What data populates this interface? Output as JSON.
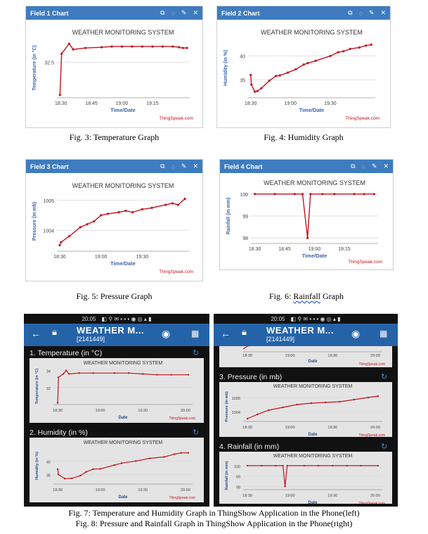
{
  "icons": {
    "panel": [
      "edit-icon",
      "comment-icon",
      "pencil-icon",
      "close-icon"
    ],
    "phone": [
      "back-arrow-icon",
      "lock-icon",
      "eye-icon",
      "grid-menu-icon",
      "refresh-icon"
    ]
  },
  "colors": {
    "header": "#3e7cbf",
    "line": "#c0141e",
    "appbar": "#2563a9",
    "refresh": "#3a8cd8"
  },
  "charts": [
    {
      "id": "c1",
      "header": "Field 1 Chart",
      "title": "WEATHER MONITORING SYSTEM",
      "ylabel": "Temperature (in °C)",
      "xlabel": "Time/Date",
      "credit": "ThingSpeak.com",
      "yticks": [
        32.5
      ],
      "ylim": [
        30.0,
        34.2
      ],
      "xticks": [
        {
          "l": "18:30",
          "v": 0
        },
        {
          "l": "18:45",
          "v": 15
        },
        {
          "l": "19:00",
          "v": 30
        },
        {
          "l": "19:15",
          "v": 45
        }
      ],
      "xlim": [
        -2,
        63
      ],
      "points": [
        [
          -0.5,
          30.2
        ],
        [
          0.3,
          33.1
        ],
        [
          4,
          33.8
        ],
        [
          6,
          33.4
        ],
        [
          12,
          33.5
        ],
        [
          20,
          33.55
        ],
        [
          25,
          33.6
        ],
        [
          30,
          33.6
        ],
        [
          35,
          33.6
        ],
        [
          40,
          33.6
        ],
        [
          45,
          33.6
        ],
        [
          50,
          33.6
        ],
        [
          55,
          33.6
        ],
        [
          58,
          33.55
        ],
        [
          60,
          33.5
        ],
        [
          62,
          33.5
        ]
      ]
    },
    {
      "id": "c2",
      "header": "Field 2 Chart",
      "title": "WEATHER MONITORING SYSTEM",
      "ylabel": "Humidity (in %)",
      "xlabel": "Time/Date",
      "credit": "ThingSpeak.com",
      "yticks": [
        35,
        40
      ],
      "ylim": [
        31.2,
        43.8
      ],
      "xticks": [
        {
          "l": "18:30",
          "v": 0
        },
        {
          "l": "19:00",
          "v": 30
        },
        {
          "l": "19:30",
          "v": 60
        }
      ],
      "xlim": [
        -2,
        94
      ],
      "points": [
        [
          0,
          36
        ],
        [
          0.5,
          34
        ],
        [
          3,
          32.5
        ],
        [
          5,
          32.6
        ],
        [
          8,
          33.2
        ],
        [
          14,
          34.8
        ],
        [
          19,
          35.8
        ],
        [
          22,
          35.9
        ],
        [
          28,
          36.5
        ],
        [
          34,
          37.2
        ],
        [
          40,
          38.2
        ],
        [
          43,
          38.5
        ],
        [
          49,
          39
        ],
        [
          60,
          40
        ],
        [
          66,
          40.8
        ],
        [
          70,
          41
        ],
        [
          75,
          41.5
        ],
        [
          82,
          41.8
        ],
        [
          87,
          42.2
        ],
        [
          91,
          42.4
        ]
      ]
    },
    {
      "id": "c3",
      "header": "Field 3 Chart",
      "title": "WEATHER MONITORING SYSTEM",
      "ylabel": "Pressure (in mb)",
      "xlabel": "Time/Date",
      "credit": "ThingSpeak.com",
      "yticks": [
        1004,
        1005
      ],
      "ylim": [
        1003.3,
        1005.3
      ],
      "xticks": [
        {
          "l": "18:30",
          "v": 0
        },
        {
          "l": "19:00",
          "v": 30
        },
        {
          "l": "19:30",
          "v": 60
        }
      ],
      "xlim": [
        -2,
        94
      ],
      "points": [
        [
          0,
          1003.5
        ],
        [
          1,
          1003.6
        ],
        [
          7,
          1003.8
        ],
        [
          15,
          1004.1
        ],
        [
          20,
          1004.2
        ],
        [
          25,
          1004.3
        ],
        [
          30,
          1004.5
        ],
        [
          35,
          1004.55
        ],
        [
          43,
          1004.6
        ],
        [
          48,
          1004.65
        ],
        [
          53,
          1004.6
        ],
        [
          60,
          1004.7
        ],
        [
          67,
          1004.75
        ],
        [
          77,
          1004.85
        ],
        [
          82,
          1004.9
        ],
        [
          86,
          1004.85
        ],
        [
          91,
          1005.05
        ]
      ]
    },
    {
      "id": "c4",
      "header": "Field 4 Chart",
      "title": "WEATHER MONITORING SYSTEM",
      "ylabel": "Rainfall (in mm)",
      "xlabel": "Time/Date",
      "credit": "ThingSpeak.com",
      "yticks": [
        98,
        99,
        100
      ],
      "ylim": [
        97.75,
        100.25
      ],
      "xticks": [
        {
          "l": "18:30",
          "v": 0
        },
        {
          "l": "18:45",
          "v": 15
        },
        {
          "l": "19:00",
          "v": 30
        },
        {
          "l": "19:15",
          "v": 45
        }
      ],
      "xlim": [
        -2,
        62
      ],
      "points": [
        [
          0,
          100
        ],
        [
          10,
          100
        ],
        [
          20,
          100
        ],
        [
          24,
          100
        ],
        [
          26.5,
          98
        ],
        [
          28,
          100
        ],
        [
          34,
          100
        ],
        [
          40,
          100
        ],
        [
          50,
          100
        ],
        [
          55,
          100
        ],
        [
          60,
          100
        ]
      ]
    }
  ],
  "captions": {
    "fig3": "Fig. 3: Temperature Graph",
    "fig4": "Fig. 4: Humidity Graph",
    "fig5": "Fig. 5: Pressure Graph",
    "fig6a": "Fig. 6: ",
    "fig6b": "Rainfall",
    "fig6c": " Graph",
    "fig7": "Fig. 7: Temperature and Humidity Graph in ThingShow Application in the Phone(left)",
    "fig8": "Fig. 8: Pressure and Rainfall Graph in ThingShow Application in the Phone(right)"
  },
  "phone": {
    "time": "20:05",
    "app_title": "WEATHER M...",
    "app_sub": "[2141449]",
    "left": {
      "sec1": "1. Temperature (in °C)",
      "sec2": "2. Humidity (in %)"
    },
    "right": {
      "sec3": "3. Pressure (in mb)",
      "sec4": "4. Rainfall (in mm)"
    },
    "cards": [
      {
        "id": "p1",
        "title": "WEATHER MONITORING SYSTEM",
        "ylabel": "Temperature (in °C)",
        "xlabel": "Date",
        "credit": "ThingSpeak.com",
        "yticks": [
          32,
          34
        ],
        "ylim": [
          30,
          34.3
        ],
        "xticks": [
          {
            "l": "18:30",
            "v": 0
          },
          {
            "l": "19:00",
            "v": 30
          },
          {
            "l": "19:30",
            "v": 60
          },
          {
            "l": "20:00",
            "v": 90
          }
        ],
        "xlim": [
          -3,
          95
        ],
        "points": [
          [
            0,
            30.2
          ],
          [
            0.5,
            33.2
          ],
          [
            4,
            33.6
          ],
          [
            6,
            34
          ],
          [
            8,
            33.6
          ],
          [
            15,
            33.7
          ],
          [
            25,
            33.7
          ],
          [
            40,
            33.7
          ],
          [
            50,
            33.7
          ],
          [
            60,
            33.6
          ],
          [
            70,
            33.5
          ],
          [
            80,
            33.5
          ],
          [
            92,
            33.5
          ]
        ]
      },
      {
        "id": "p2",
        "title": "WEATHER MONITORING SYSTEM",
        "ylabel": "Humidity (in %)",
        "xlabel": "Date",
        "credit": "ThingSpeak.com",
        "yticks": [
          35,
          40
        ],
        "ylim": [
          31.5,
          45
        ],
        "xticks": [
          {
            "l": "18:30",
            "v": 0
          },
          {
            "l": "19:00",
            "v": 30
          },
          {
            "l": "19:30",
            "v": 60
          },
          {
            "l": "20:00",
            "v": 90
          }
        ],
        "xlim": [
          -3,
          95
        ],
        "points": [
          [
            0,
            37
          ],
          [
            0.5,
            35
          ],
          [
            5,
            33.5
          ],
          [
            10,
            33.6
          ],
          [
            16,
            34.6
          ],
          [
            20,
            36
          ],
          [
            25,
            37
          ],
          [
            30,
            37.1
          ],
          [
            40,
            38.5
          ],
          [
            45,
            39.2
          ],
          [
            55,
            40
          ],
          [
            65,
            41
          ],
          [
            75,
            41.5
          ],
          [
            82,
            42.5
          ],
          [
            87,
            43
          ],
          [
            92,
            43
          ]
        ]
      },
      {
        "id": "p3",
        "title": "WEATHER MONITORING SYSTEM",
        "ylabel": "Pressure (in mb)",
        "xlabel": "Date",
        "credit": "ThingSpeak.com",
        "yticks": [
          1004,
          1005
        ],
        "ylim": [
          1003.3,
          1005.4
        ],
        "xticks": [
          {
            "l": "18:30",
            "v": 0
          },
          {
            "l": "19:00",
            "v": 30
          },
          {
            "l": "19:30",
            "v": 60
          },
          {
            "l": "20:00",
            "v": 90
          }
        ],
        "xlim": [
          -3,
          95
        ],
        "points": [
          [
            0,
            1003.5
          ],
          [
            7,
            1003.8
          ],
          [
            15,
            1004.1
          ],
          [
            25,
            1004.3
          ],
          [
            35,
            1004.5
          ],
          [
            45,
            1004.6
          ],
          [
            55,
            1004.65
          ],
          [
            65,
            1004.7
          ],
          [
            75,
            1004.85
          ],
          [
            85,
            1005.0
          ],
          [
            92,
            1005.1
          ]
        ]
      },
      {
        "id": "p4",
        "title": "WEATHER MONITORING SYSTEM",
        "ylabel": "Rainfall (in mm)",
        "xlabel": "Date",
        "credit": "ThingSpeak.com",
        "yticks": [
          98,
          99,
          100
        ],
        "ylim": [
          97.7,
          100.4
        ],
        "xticks": [
          {
            "l": "18:30",
            "v": 0
          },
          {
            "l": "19:00",
            "v": 30
          },
          {
            "l": "19:30",
            "v": 60
          },
          {
            "l": "20:00",
            "v": 90
          }
        ],
        "xlim": [
          -3,
          95
        ],
        "points": [
          [
            0,
            100
          ],
          [
            10,
            100
          ],
          [
            20,
            100
          ],
          [
            25,
            100
          ],
          [
            26.5,
            98
          ],
          [
            28,
            100
          ],
          [
            40,
            100
          ],
          [
            50,
            100
          ],
          [
            60,
            100
          ],
          [
            70,
            100
          ],
          [
            80,
            100
          ],
          [
            92,
            100
          ]
        ]
      }
    ]
  }
}
